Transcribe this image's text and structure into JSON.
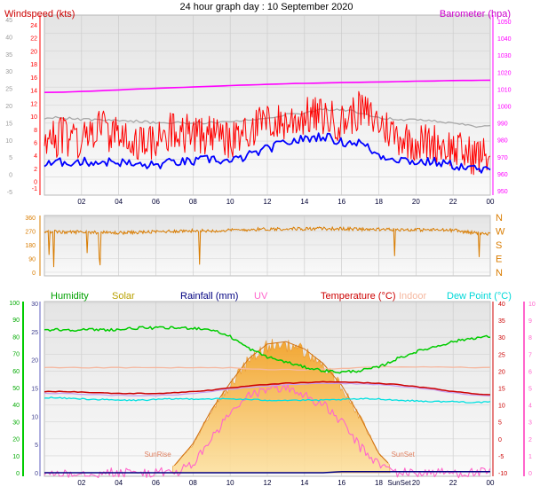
{
  "title": "24 hour graph day : 10 September 2020",
  "colors": {
    "wind_gust": "#ff0000",
    "wind_avg": "#0000ff",
    "barometer": "#ff00ff",
    "indoor_baro": "#a8a8a8",
    "wind_dir": "#d97c00",
    "humidity": "#00cc00",
    "solar": "#f0a020",
    "rainfall": "#000080",
    "uv": "#ff66cc",
    "temperature": "#cc0000",
    "indoor": "#f5b8a0",
    "dew_point": "#00e0e0",
    "heat_index": "#c8a0f0",
    "sun_label": "#e08060"
  },
  "chart_data": [
    {
      "type": "line",
      "panel": "wind_barometer",
      "left_axis_label": "Windspeed (kts)",
      "right_axis_label": "Barometer (hpa)",
      "x_ticks": [
        "02",
        "04",
        "06",
        "08",
        "10",
        "12",
        "14",
        "16",
        "18",
        "20",
        "22",
        "00"
      ],
      "left_ticks_kts": [
        "-1",
        "0",
        "2",
        "4",
        "6",
        "8",
        "10",
        "12",
        "14",
        "16",
        "18",
        "20",
        "22",
        "24"
      ],
      "left_ticks_scale": [
        "-5",
        "0",
        "5",
        "10",
        "15",
        "20",
        "25",
        "30",
        "35",
        "40",
        "45"
      ],
      "right_ticks": [
        "950",
        "960",
        "970",
        "980",
        "990",
        "1000",
        "1010",
        "1020",
        "1030",
        "1040",
        "1050"
      ],
      "x_hours": [
        0,
        1,
        2,
        3,
        4,
        5,
        6,
        7,
        8,
        9,
        10,
        11,
        12,
        13,
        14,
        15,
        16,
        17,
        18,
        19,
        20,
        21,
        22,
        23,
        24
      ],
      "series": [
        {
          "key": "barometer",
          "name": "Barometer",
          "axis": "right",
          "values": [
            1008.0,
            1008.2,
            1008.6,
            1009.0,
            1009.5,
            1010.0,
            1010.4,
            1010.8,
            1011.2,
            1011.6,
            1012.0,
            1012.4,
            1012.8,
            1013.1,
            1013.4,
            1013.6,
            1013.8,
            1014.0,
            1014.2,
            1014.4,
            1014.6,
            1014.8,
            1015.0,
            1015.1,
            1015.2
          ]
        },
        {
          "key": "indoor_baro",
          "axis": "right",
          "values": [
            993,
            993,
            992,
            992,
            991,
            991,
            990,
            990,
            990,
            990,
            991,
            992,
            993,
            995,
            996,
            998,
            998,
            996,
            993,
            992,
            992,
            991,
            990,
            988,
            988
          ]
        },
        {
          "key": "wind_gust",
          "axis": "left",
          "values": [
            6,
            7,
            6,
            8,
            7,
            6,
            6,
            8,
            7,
            7,
            6,
            8,
            9,
            9,
            10,
            10,
            9,
            11,
            9,
            7,
            6,
            6,
            5,
            4,
            4
          ]
        },
        {
          "key": "wind_avg",
          "axis": "left",
          "values": [
            2.5,
            3,
            3,
            3,
            3,
            2.5,
            2.5,
            3,
            3,
            3.5,
            3,
            4,
            5,
            6,
            6.5,
            7,
            6,
            6,
            4,
            3.5,
            3,
            3,
            2.5,
            2,
            1.5
          ]
        }
      ]
    },
    {
      "type": "scatter",
      "panel": "wind_direction",
      "left_ticks": [
        "0",
        "90",
        "180",
        "270",
        "360"
      ],
      "right_labels": [
        "N",
        "W",
        "S",
        "E",
        "N"
      ],
      "x_hours": [
        0,
        1,
        2,
        3,
        4,
        5,
        6,
        7,
        8,
        9,
        10,
        11,
        12,
        13,
        14,
        15,
        16,
        17,
        18,
        19,
        20,
        21,
        22,
        23,
        24
      ],
      "values": [
        270,
        262,
        265,
        260,
        258,
        262,
        265,
        270,
        272,
        272,
        275,
        280,
        283,
        285,
        285,
        286,
        285,
        283,
        280,
        280,
        278,
        278,
        275,
        260,
        250
      ]
    },
    {
      "type": "line",
      "panel": "temperature_humidity_solar",
      "legend": [
        "Humidity",
        "Solar",
        "Rainfall (mm)",
        "UV",
        "Temperature (°C)",
        "Indoor",
        "Dew Point (°C)"
      ],
      "outer_left_ticks": [
        "0",
        "10",
        "20",
        "30",
        "40",
        "50",
        "60",
        "70",
        "80",
        "90",
        "100"
      ],
      "inner_left_ticks": [
        "0",
        "5",
        "10",
        "15",
        "20",
        "25",
        "30"
      ],
      "inner_right_ticks": [
        "-10",
        "-5",
        "0",
        "5",
        "10",
        "15",
        "20",
        "25",
        "30",
        "35",
        "40"
      ],
      "outer_right_ticks": [
        "0",
        "1",
        "2",
        "3",
        "4",
        "5",
        "6",
        "7",
        "8",
        "9",
        "10"
      ],
      "x_ticks": [
        "02",
        "04",
        "06",
        "08",
        "10",
        "12",
        "14",
        "16",
        "18",
        "SunSet",
        "20",
        "22",
        "00"
      ],
      "annotations": [
        "SunRise",
        "SunSet"
      ],
      "x_hours": [
        0,
        1,
        2,
        3,
        4,
        5,
        6,
        7,
        8,
        9,
        10,
        11,
        12,
        13,
        14,
        15,
        16,
        17,
        18,
        19,
        20,
        21,
        22,
        23,
        24
      ],
      "series": [
        {
          "key": "humidity",
          "name": "Humidity",
          "values": [
            84,
            84,
            84,
            84,
            84,
            85,
            85,
            85,
            85,
            84,
            80,
            73,
            68,
            65,
            62,
            60,
            59,
            60,
            62,
            67,
            71,
            74,
            77,
            79,
            80
          ]
        },
        {
          "key": "solar",
          "name": "Solar",
          "values": [
            0,
            0,
            0,
            0,
            0,
            0,
            0,
            30,
            120,
            260,
            370,
            470,
            530,
            540,
            510,
            450,
            360,
            230,
            80,
            0,
            0,
            0,
            0,
            0,
            0
          ]
        },
        {
          "key": "uv",
          "name": "UV",
          "values": [
            0,
            0,
            0,
            0,
            0,
            0,
            0,
            0,
            0.5,
            2,
            3.5,
            4.5,
            5,
            5,
            4.6,
            4,
            3,
            1.5,
            0.5,
            0,
            0,
            0,
            0,
            0,
            0
          ]
        },
        {
          "key": "rainfall",
          "name": "Rainfall (mm)",
          "values": [
            0,
            0,
            0,
            0,
            0,
            0,
            0,
            0,
            0,
            0,
            0,
            0,
            0,
            0,
            0,
            0,
            0.2,
            0.2,
            0.2,
            0.2,
            0.2,
            0.2,
            0.2,
            0.2,
            0.2
          ]
        },
        {
          "key": "temperature",
          "name": "Temperature (°C)",
          "values": [
            14,
            14,
            13.8,
            13.6,
            13.4,
            13.4,
            13.4,
            13.6,
            14,
            14.4,
            15,
            15.6,
            16,
            16.4,
            16.6,
            16.8,
            16.8,
            16.6,
            16.4,
            16,
            15.4,
            14.8,
            14,
            13.4,
            13
          ]
        },
        {
          "key": "indoor",
          "name": "Indoor",
          "values": [
            21,
            21,
            21,
            21,
            21,
            21,
            21,
            21,
            21,
            21,
            21,
            20.6,
            20.4,
            20.4,
            20.4,
            20.6,
            20.8,
            21,
            21.2,
            21.2,
            21.2,
            21.2,
            21.2,
            21,
            21
          ]
        },
        {
          "key": "dew_point",
          "name": "Dew Point (°C)",
          "values": [
            12.2,
            12,
            11.8,
            11.6,
            11.4,
            11.4,
            11.6,
            11.8,
            11.8,
            11.8,
            11.8,
            11.6,
            11.4,
            11.4,
            11.4,
            11.4,
            11.6,
            11.8,
            11.8,
            11.4,
            11.2,
            11,
            11,
            10.8,
            10.8
          ]
        },
        {
          "key": "heat_index",
          "values": [
            13.4,
            13.4,
            13.2,
            13,
            12.8,
            12.8,
            12.8,
            13,
            13.4,
            14,
            14.6,
            15.2,
            15.6,
            16,
            16.2,
            16.4,
            16.4,
            16.2,
            16,
            15.6,
            15,
            14.4,
            13.6,
            13,
            12.6
          ]
        }
      ]
    }
  ]
}
